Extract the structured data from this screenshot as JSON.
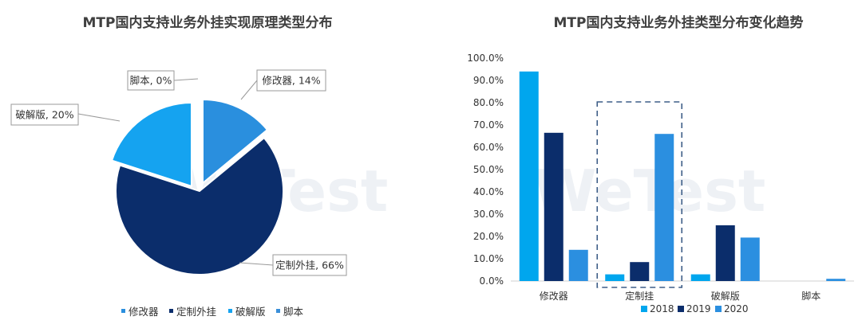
{
  "charts": {
    "pie": {
      "title": "MTP国内支持业务外挂实现原理类型分布",
      "legend": [
        "修改器",
        "定制外挂",
        "破解版",
        "脚本"
      ]
    },
    "bar": {
      "title": "MTP国内支持业务外挂类型分布变化趋势",
      "legend": [
        "2018",
        "2019",
        "2020"
      ]
    }
  },
  "chart_data": [
    {
      "type": "pie",
      "title": "MTP国内支持业务外挂实现原理类型分布",
      "slices": [
        {
          "name": "修改器",
          "value": 14,
          "label": "修改器, 14%",
          "color": "#2a8fde"
        },
        {
          "name": "定制外挂",
          "value": 66,
          "label": "定制外挂, 66%",
          "color": "#0b2d6b"
        },
        {
          "name": "破解版",
          "value": 20,
          "label": "破解版, 20%",
          "color": "#15a3f0"
        },
        {
          "name": "脚本",
          "value": 0,
          "label": "脚本, 0%",
          "color": "#3a8fd9"
        }
      ],
      "legend_position": "bottom"
    },
    {
      "type": "bar",
      "title": "MTP国内支持业务外挂类型分布变化趋势",
      "categories": [
        "修改器",
        "定制挂",
        "破解版",
        "脚本"
      ],
      "series": [
        {
          "name": "2018",
          "values": [
            94,
            3,
            3,
            0
          ],
          "color": "#00a6ee"
        },
        {
          "name": "2019",
          "values": [
            66.5,
            8.5,
            25,
            0
          ],
          "color": "#0b2d6b"
        },
        {
          "name": "2020",
          "values": [
            14,
            66,
            19.5,
            1
          ],
          "color": "#2b8fe0"
        }
      ],
      "ylim": [
        0,
        100
      ],
      "yticks": [
        "0.0%",
        "10.0%",
        "20.0%",
        "30.0%",
        "40.0%",
        "50.0%",
        "60.0%",
        "70.0%",
        "80.0%",
        "90.0%",
        "100.0%"
      ],
      "legend_position": "bottom",
      "highlight_category": "定制挂"
    }
  ],
  "watermark": "WeTest"
}
